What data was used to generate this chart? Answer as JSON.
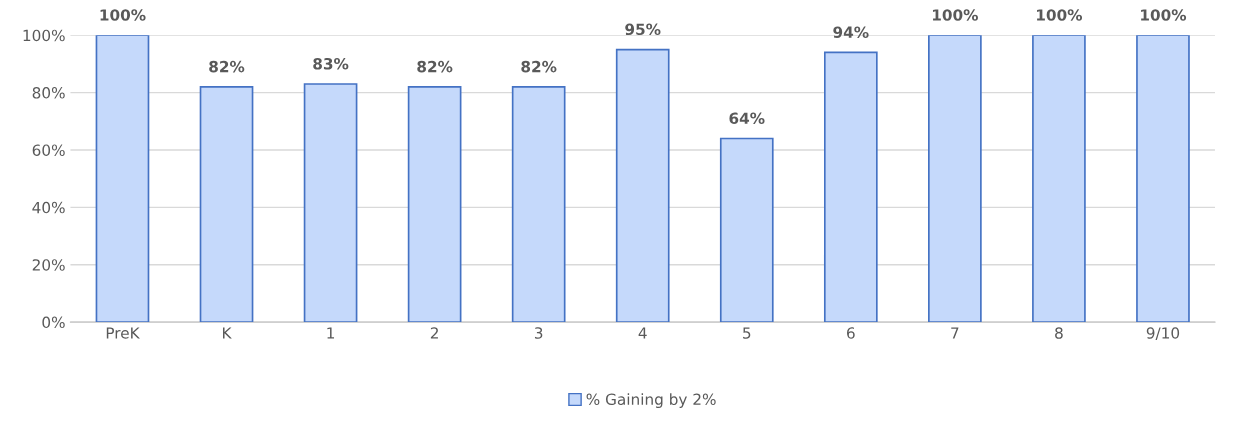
{
  "chart_data": {
    "type": "bar",
    "categories": [
      "PreK",
      "K",
      "1",
      "2",
      "3",
      "4",
      "5",
      "6",
      "7",
      "8",
      "9/10"
    ],
    "series": [
      {
        "name": "% Gaining by 2%",
        "color": "#c5d9fb",
        "values": [
          100,
          82,
          83,
          82,
          82,
          95,
          64,
          94,
          100,
          100,
          100
        ],
        "value_labels": [
          "100%",
          "82%",
          "83%",
          "82%",
          "82%",
          "95%",
          "64%",
          "94%",
          "100%",
          "100%",
          "100%"
        ]
      }
    ],
    "ylim": [
      0,
      100
    ],
    "yticks": [
      {
        "value": 0,
        "label": "0%"
      },
      {
        "value": 20,
        "label": "20%"
      },
      {
        "value": 40,
        "label": "40%"
      },
      {
        "value": 60,
        "label": "60%"
      },
      {
        "value": 80,
        "label": "80%"
      },
      {
        "value": 100,
        "label": "100%"
      }
    ],
    "grid": "y",
    "legend": "bottom"
  }
}
